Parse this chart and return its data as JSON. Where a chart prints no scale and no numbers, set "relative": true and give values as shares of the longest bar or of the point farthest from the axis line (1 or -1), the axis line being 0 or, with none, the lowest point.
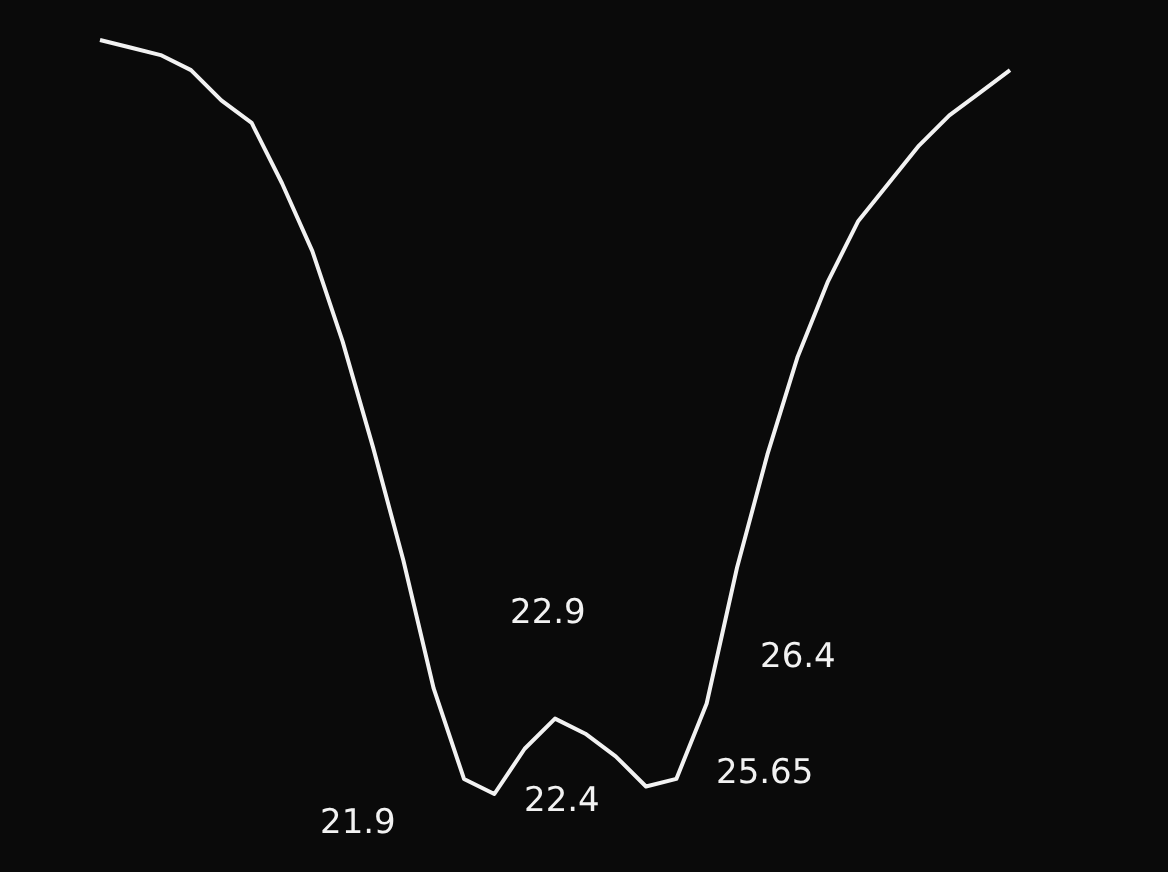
{
  "chart_data": {
    "type": "line",
    "relative": true,
    "categories": [
      null,
      null,
      null,
      null,
      null,
      null,
      null,
      null,
      null,
      null,
      null,
      null,
      null,
      null,
      null,
      null,
      null,
      null,
      null,
      null,
      null,
      null,
      null,
      null,
      null,
      null,
      null,
      null,
      null,
      null,
      null
    ],
    "series": [
      {
        "color": "#f2f2f2",
        "values": [
          1.0,
          0.99,
          0.98,
          0.96,
          0.92,
          0.89,
          0.81,
          0.72,
          0.6,
          0.46,
          0.31,
          0.14,
          0.02,
          0,
          0.06,
          0.1,
          0.08,
          0.05,
          0.01,
          0.02,
          0.12,
          0.3,
          0.45,
          0.58,
          0.68,
          0.76,
          0.81,
          0.86,
          0.9,
          0.93,
          0.96
        ]
      }
    ],
    "annotations": [
      "22.9",
      "26.4",
      "21.9",
      "22.4",
      "25.65"
    ]
  }
}
